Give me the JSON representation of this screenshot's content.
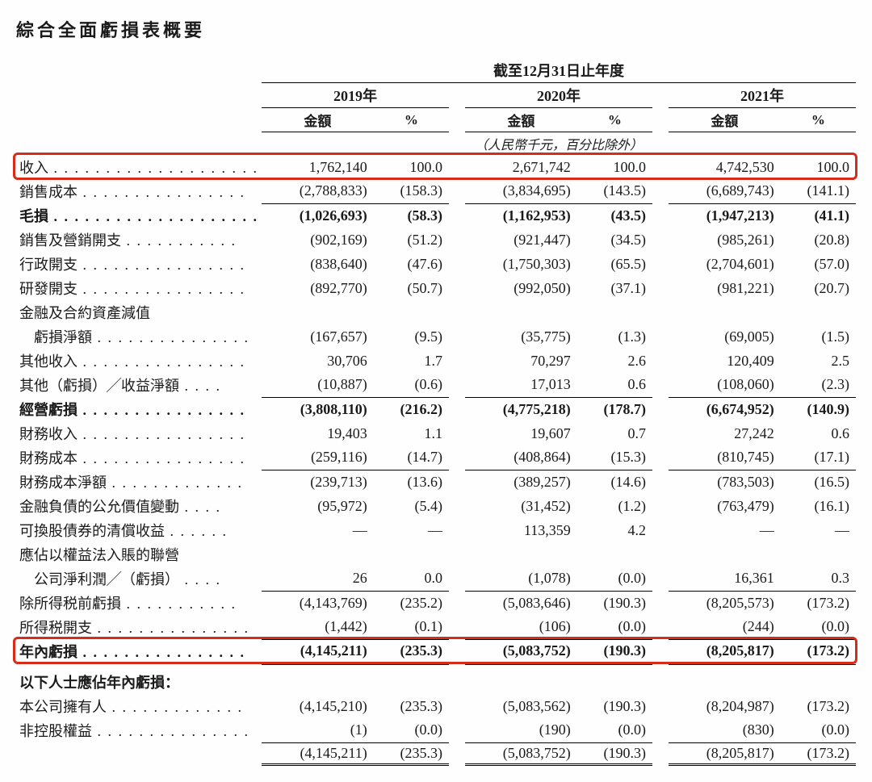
{
  "title": "綜合全面虧損表概要",
  "period_header": "截至12月31日止年度",
  "years": [
    "2019年",
    "2020年",
    "2021年"
  ],
  "col_labels": {
    "amount": "金額",
    "pct": "%"
  },
  "unit_note": "（人民幣千元，百分比除外）",
  "attrib_header": "以下人士應佔年內虧損：",
  "highlight_color": "#d62c1a",
  "table": {
    "type": "table",
    "background_color": "#fefefe",
    "text_color": "#1a1a1a",
    "font_family": "Times New Roman",
    "base_fontsize": 18,
    "title_fontsize": 22,
    "col_widths": {
      "label": 240,
      "amount": 120,
      "pct": 100,
      "spacer": 20
    },
    "double_border_rows": [
      "年內虧損",
      "total_attrib"
    ]
  },
  "rows": [
    {
      "k": "revenue",
      "label": "收入",
      "a1": "1,762,140",
      "p1": "100.0",
      "a2": "2,671,742",
      "p2": "100.0",
      "a3": "4,742,530",
      "p3": "100.0",
      "hl": true,
      "b": false
    },
    {
      "k": "cogs",
      "label": "銷售成本",
      "a1": "(2,788,833)",
      "p1": "(158.3)",
      "a2": "(3,834,695)",
      "p2": "(143.5)",
      "a3": "(6,689,743)",
      "p3": "(141.1)",
      "bb": true
    },
    {
      "k": "gross",
      "label": "毛損",
      "a1": "(1,026,693)",
      "p1": "(58.3)",
      "a2": "(1,162,953)",
      "p2": "(43.5)",
      "a3": "(1,947,213)",
      "p3": "(41.1)",
      "bold": true
    },
    {
      "k": "selling",
      "label": "銷售及營銷開支",
      "a1": "(902,169)",
      "p1": "(51.2)",
      "a2": "(921,447)",
      "p2": "(34.5)",
      "a3": "(985,261)",
      "p3": "(20.8)"
    },
    {
      "k": "admin",
      "label": "行政開支",
      "a1": "(838,640)",
      "p1": "(47.6)",
      "a2": "(1,750,303)",
      "p2": "(65.5)",
      "a3": "(2,704,601)",
      "p3": "(57.0)"
    },
    {
      "k": "rnd",
      "label": "研發開支",
      "a1": "(892,770)",
      "p1": "(50.7)",
      "a2": "(992,050)",
      "p2": "(37.1)",
      "a3": "(981,221)",
      "p3": "(20.7)"
    },
    {
      "k": "impair_h",
      "label": "金融及合約資產減值",
      "nodata": true
    },
    {
      "k": "impair",
      "label": "　虧損淨額",
      "a1": "(167,657)",
      "p1": "(9.5)",
      "a2": "(35,775)",
      "p2": "(1.3)",
      "a3": "(69,005)",
      "p3": "(1.5)"
    },
    {
      "k": "oth_inc",
      "label": "其他收入",
      "a1": "30,706",
      "p1": "1.7",
      "a2": "70,297",
      "p2": "2.6",
      "a3": "120,409",
      "p3": "2.5"
    },
    {
      "k": "oth_gl",
      "label": "其他（虧損）╱收益淨額",
      "a1": "(10,887)",
      "p1": "(0.6)",
      "a2": "17,013",
      "p2": "0.6",
      "a3": "(108,060)",
      "p3": "(2.3)",
      "bb": true
    },
    {
      "k": "op_loss",
      "label": "經營虧損",
      "a1": "(3,808,110)",
      "p1": "(216.2)",
      "a2": "(4,775,218)",
      "p2": "(178.7)",
      "a3": "(6,674,952)",
      "p3": "(140.9)",
      "bold": true
    },
    {
      "k": "fin_inc",
      "label": "財務收入",
      "a1": "19,403",
      "p1": "1.1",
      "a2": "19,607",
      "p2": "0.7",
      "a3": "27,242",
      "p3": "0.6"
    },
    {
      "k": "fin_cost",
      "label": "財務成本",
      "a1": "(259,116)",
      "p1": "(14.7)",
      "a2": "(408,864)",
      "p2": "(15.3)",
      "a3": "(810,745)",
      "p3": "(17.1)",
      "bb": true
    },
    {
      "k": "fin_net",
      "label": "財務成本淨額",
      "a1": "(239,713)",
      "p1": "(13.6)",
      "a2": "(389,257)",
      "p2": "(14.6)",
      "a3": "(783,503)",
      "p3": "(16.5)"
    },
    {
      "k": "fv_change",
      "label": "金融負債的公允價值變動",
      "a1": "(95,972)",
      "p1": "(5.4)",
      "a2": "(31,452)",
      "p2": "(1.2)",
      "a3": "(763,479)",
      "p3": "(16.1)"
    },
    {
      "k": "conv_gain",
      "label": "可換股債券的清償收益",
      "a1": "—",
      "p1": "—",
      "a2": "113,359",
      "p2": "4.2",
      "a3": "—",
      "p3": "—"
    },
    {
      "k": "assoc_h",
      "label": "應佔以權益法入賬的聯營",
      "nodata": true
    },
    {
      "k": "assoc",
      "label": "　公司淨利潤╱（虧損）",
      "a1": "26",
      "p1": "0.0",
      "a2": "(1,078)",
      "p2": "(0.0)",
      "a3": "16,361",
      "p3": "0.3",
      "bb": true
    },
    {
      "k": "pbt",
      "label": "除所得税前虧損",
      "a1": "(4,143,769)",
      "p1": "(235.2)",
      "a2": "(5,083,646)",
      "p2": "(190.3)",
      "a3": "(8,205,573)",
      "p3": "(173.2)"
    },
    {
      "k": "tax",
      "label": "所得税開支",
      "a1": "(1,442)",
      "p1": "(0.1)",
      "a2": "(106)",
      "p2": "(0.0)",
      "a3": "(244)",
      "p3": "(0.0)",
      "bb": true
    },
    {
      "k": "year_loss",
      "label": "年內虧損",
      "a1": "(4,145,211)",
      "p1": "(235.3)",
      "a2": "(5,083,752)",
      "p2": "(190.3)",
      "a3": "(8,205,817)",
      "p3": "(173.2)",
      "bold": true,
      "dbl": true,
      "hl": true
    }
  ],
  "attrib_rows": [
    {
      "k": "owners",
      "label": "本公司擁有人",
      "a1": "(4,145,210)",
      "p1": "(235.3)",
      "a2": "(5,083,562)",
      "p2": "(190.3)",
      "a3": "(8,204,987)",
      "p3": "(173.2)"
    },
    {
      "k": "nci",
      "label": "非控股權益",
      "a1": "(1)",
      "p1": "(0.0)",
      "a2": "(190)",
      "p2": "(0.0)",
      "a3": "(830)",
      "p3": "(0.0)",
      "bb": true
    },
    {
      "k": "total_attrib",
      "label": "",
      "a1": "(4,145,211)",
      "p1": "(235.3)",
      "a2": "(5,083,752)",
      "p2": "(190.3)",
      "a3": "(8,205,817)",
      "p3": "(173.2)",
      "dbl": true
    }
  ]
}
